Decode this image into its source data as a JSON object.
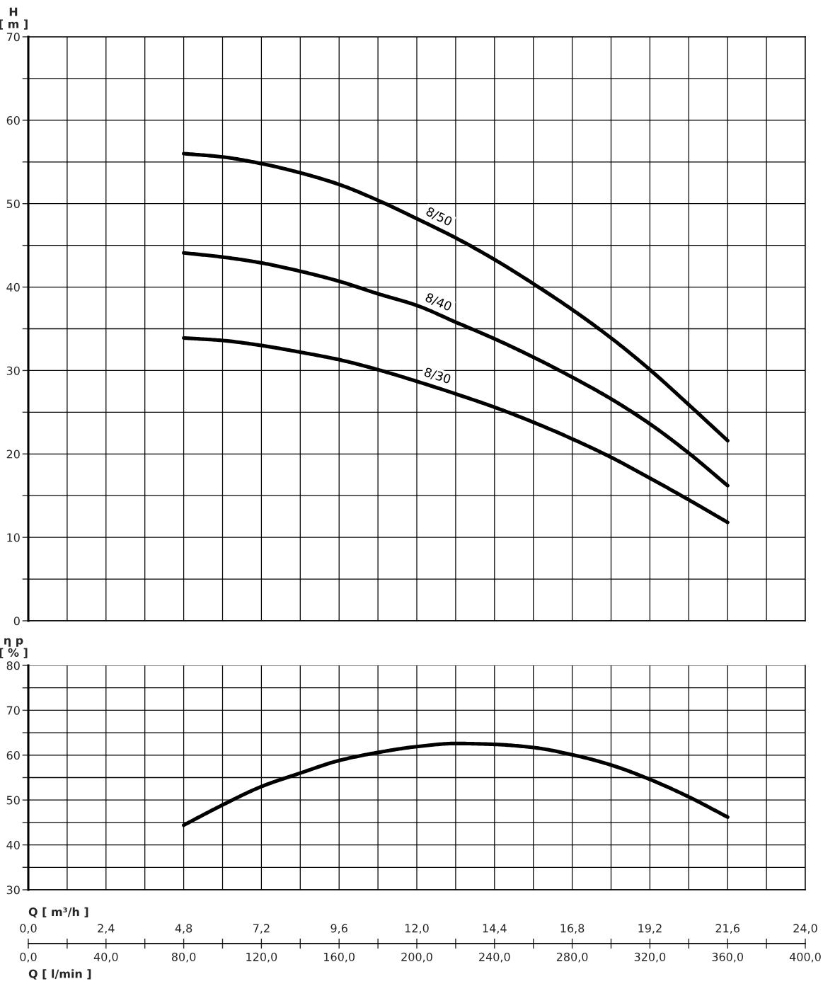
{
  "chart_data": [
    {
      "type": "line",
      "ylabel": "H\n[ m ]",
      "tick_labels": "y",
      "grid": true,
      "x": [
        4.8,
        6.0,
        7.2,
        8.4,
        9.6,
        10.8,
        12.0,
        13.2,
        14.4,
        15.6,
        16.8,
        18.0,
        19.2,
        20.4,
        21.6
      ],
      "xlim": [
        0,
        24
      ],
      "xticks": [
        {
          "value": 0,
          "label": null
        },
        {
          "value": 1.2,
          "label": null
        },
        {
          "value": 2.4,
          "label": null
        },
        {
          "value": 3.6,
          "label": null
        },
        {
          "value": 4.8,
          "label": null
        },
        {
          "value": 6.0,
          "label": null
        },
        {
          "value": 7.2,
          "label": null
        },
        {
          "value": 8.4,
          "label": null
        },
        {
          "value": 9.6,
          "label": null
        },
        {
          "value": 10.8,
          "label": null
        },
        {
          "value": 12.0,
          "label": null
        },
        {
          "value": 13.2,
          "label": null
        },
        {
          "value": 14.4,
          "label": null
        },
        {
          "value": 15.6,
          "label": null
        },
        {
          "value": 16.8,
          "label": null
        },
        {
          "value": 18.0,
          "label": null
        },
        {
          "value": 19.2,
          "label": null
        },
        {
          "value": 20.4,
          "label": null
        },
        {
          "value": 21.6,
          "label": null
        },
        {
          "value": 22.8,
          "label": null
        },
        {
          "value": 24.0,
          "label": null
        }
      ],
      "ylim": [
        0,
        70
      ],
      "yticks": [
        0,
        {
          "value": 5,
          "label": null
        },
        10,
        {
          "value": 15,
          "label": null
        },
        20,
        {
          "value": 25,
          "label": null
        },
        30,
        {
          "value": 35,
          "label": null
        },
        40,
        {
          "value": 45,
          "label": null
        },
        50,
        {
          "value": 55,
          "label": null
        },
        60,
        {
          "value": 65,
          "label": null
        },
        70
      ],
      "series": [
        {
          "name": "8/50",
          "color": "#000000",
          "values": [
            56.0,
            55.6,
            54.8,
            53.7,
            52.3,
            50.4,
            48.2,
            45.9,
            43.3,
            40.4,
            37.3,
            33.9,
            30.1,
            25.9,
            21.6
          ]
        },
        {
          "name": "8/40",
          "color": "#000000",
          "values": [
            44.1,
            43.6,
            42.9,
            41.9,
            40.7,
            39.2,
            37.8,
            35.8,
            33.8,
            31.6,
            29.2,
            26.6,
            23.6,
            20.1,
            16.2
          ]
        },
        {
          "name": "8/30",
          "color": "#000000",
          "values": [
            33.9,
            33.6,
            33.0,
            32.2,
            31.3,
            30.1,
            28.7,
            27.2,
            25.6,
            23.8,
            21.8,
            19.6,
            17.1,
            14.5,
            11.8
          ]
        }
      ]
    },
    {
      "type": "line",
      "ylabel": "η p\n[ % ]",
      "xlabel": "Q [ m³/h ]",
      "x2label": "Q [ l/min ]",
      "grid": true,
      "x": [
        4.8,
        6.0,
        7.2,
        8.4,
        9.6,
        10.8,
        12.0,
        13.2,
        14.4,
        15.6,
        16.8,
        18.0,
        19.2,
        20.4,
        21.6
      ],
      "xlim": [
        0,
        24
      ],
      "xticks": [
        {
          "value": 0,
          "label": "0,0"
        },
        {
          "value": 1.2,
          "label": null
        },
        {
          "value": 2.4,
          "label": "2,4"
        },
        {
          "value": 3.6,
          "label": null
        },
        {
          "value": 4.8,
          "label": "4,8"
        },
        {
          "value": 6.0,
          "label": null
        },
        {
          "value": 7.2,
          "label": "7,2"
        },
        {
          "value": 8.4,
          "label": null
        },
        {
          "value": 9.6,
          "label": "9,6"
        },
        {
          "value": 10.8,
          "label": null
        },
        {
          "value": 12.0,
          "label": "12,0"
        },
        {
          "value": 13.2,
          "label": null
        },
        {
          "value": 14.4,
          "label": "14,4"
        },
        {
          "value": 15.6,
          "label": null
        },
        {
          "value": 16.8,
          "label": "16,8"
        },
        {
          "value": 18.0,
          "label": null
        },
        {
          "value": 19.2,
          "label": "19,2"
        },
        {
          "value": 20.4,
          "label": null
        },
        {
          "value": 21.6,
          "label": "21,6"
        },
        {
          "value": 22.8,
          "label": null
        },
        {
          "value": 24.0,
          "label": "24,0"
        }
      ],
      "x2lim": [
        0,
        400
      ],
      "x2ticks": [
        {
          "value": 0,
          "label": "0,0"
        },
        {
          "value": 20,
          "label": null
        },
        {
          "value": 40,
          "label": "40,0"
        },
        {
          "value": 60,
          "label": null
        },
        {
          "value": 80,
          "label": "80,0"
        },
        {
          "value": 100,
          "label": null
        },
        {
          "value": 120,
          "label": "120,0"
        },
        {
          "value": 140,
          "label": null
        },
        {
          "value": 160,
          "label": "160,0"
        },
        {
          "value": 180,
          "label": null
        },
        {
          "value": 200,
          "label": "200,0"
        },
        {
          "value": 220,
          "label": null
        },
        {
          "value": 240,
          "label": "240,0"
        },
        {
          "value": 260,
          "label": null
        },
        {
          "value": 280,
          "label": "280,0"
        },
        {
          "value": 300,
          "label": null
        },
        {
          "value": 320,
          "label": "320,0"
        },
        {
          "value": 340,
          "label": null
        },
        {
          "value": 360,
          "label": "360,0"
        },
        {
          "value": 380,
          "label": null
        },
        {
          "value": 400,
          "label": "400,0"
        }
      ],
      "ylim": [
        30,
        80
      ],
      "yticks": [
        30,
        {
          "value": 35,
          "label": null
        },
        40,
        {
          "value": 45,
          "label": null
        },
        50,
        {
          "value": 55,
          "label": null
        },
        60,
        {
          "value": 65,
          "label": null
        },
        70,
        {
          "value": 75,
          "label": null
        },
        80
      ],
      "series": [
        {
          "color": "#000000",
          "values": [
            44.4,
            48.9,
            53.0,
            56.0,
            58.8,
            60.6,
            61.9,
            62.6,
            62.4,
            61.7,
            60.1,
            57.8,
            54.6,
            50.7,
            46.2
          ]
        }
      ]
    }
  ]
}
